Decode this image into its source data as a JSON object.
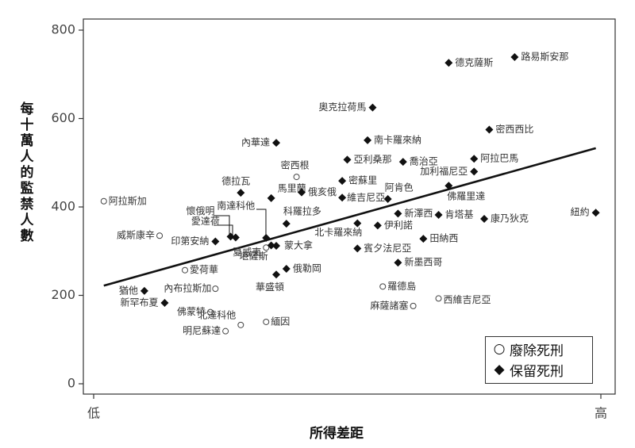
{
  "chart_data": {
    "type": "scatter",
    "title": "",
    "xlabel": "所得差距",
    "ylabel": "每十萬人的監禁人數",
    "x_ticks": [
      "低",
      "高"
    ],
    "xlim": [
      0,
      1
    ],
    "ylim": [
      0,
      800
    ],
    "y_ticks": [
      0,
      200,
      400,
      600,
      800
    ],
    "grid": false,
    "legend_position": "bottom-right",
    "legend": [
      {
        "label": "廢除死刑",
        "marker": "open-circle"
      },
      {
        "label": "保留死刑",
        "marker": "filled-diamond"
      }
    ],
    "trend_line": {
      "from": [
        0.02,
        222
      ],
      "to": [
        0.99,
        533
      ]
    },
    "series": [
      {
        "name": "廢除死刑",
        "marker": "open-circle",
        "points": [
          {
            "label": "阿拉斯加",
            "x": 0.02,
            "y": 413
          },
          {
            "label": "威斯康辛",
            "x": 0.13,
            "y": 335
          },
          {
            "label": "愛荷華",
            "x": 0.18,
            "y": 257
          },
          {
            "label": "內布拉斯加",
            "x": 0.24,
            "y": 215
          },
          {
            "label": "佛蒙特",
            "x": 0.23,
            "y": 162
          },
          {
            "label": "北達科他",
            "x": 0.29,
            "y": 133
          },
          {
            "label": "明尼蘇達",
            "x": 0.26,
            "y": 119
          },
          {
            "label": "緬因",
            "x": 0.34,
            "y": 140
          },
          {
            "label": "夏威夷",
            "x": 0.34,
            "y": 308
          },
          {
            "label": "密西根",
            "x": 0.4,
            "y": 468
          },
          {
            "label": "羅德島",
            "x": 0.57,
            "y": 220
          },
          {
            "label": "麻薩諸塞",
            "x": 0.63,
            "y": 176
          },
          {
            "label": "西維吉尼亞",
            "x": 0.68,
            "y": 193
          }
        ]
      },
      {
        "name": "保留死刑",
        "marker": "filled-diamond",
        "points": [
          {
            "label": "德克薩斯",
            "x": 0.7,
            "y": 726
          },
          {
            "label": "路易斯安那",
            "x": 0.83,
            "y": 739
          },
          {
            "label": "奧克拉荷馬",
            "x": 0.55,
            "y": 625
          },
          {
            "label": "密西西比",
            "x": 0.78,
            "y": 575
          },
          {
            "label": "內華達",
            "x": 0.36,
            "y": 545
          },
          {
            "label": "南卡羅來納",
            "x": 0.54,
            "y": 551
          },
          {
            "label": "亞利桑那",
            "x": 0.5,
            "y": 507
          },
          {
            "label": "喬治亞",
            "x": 0.61,
            "y": 502
          },
          {
            "label": "阿拉巴馬",
            "x": 0.75,
            "y": 509
          },
          {
            "label": "加利福尼亞",
            "x": 0.75,
            "y": 480
          },
          {
            "label": "密蘇里",
            "x": 0.49,
            "y": 459
          },
          {
            "label": "佛羅里達",
            "x": 0.7,
            "y": 448
          },
          {
            "label": "德拉瓦",
            "x": 0.29,
            "y": 432
          },
          {
            "label": "馬里蘭",
            "x": 0.35,
            "y": 420
          },
          {
            "label": "俄亥俄",
            "x": 0.41,
            "y": 433
          },
          {
            "label": "維吉尼亞",
            "x": 0.49,
            "y": 421
          },
          {
            "label": "阿肯色",
            "x": 0.58,
            "y": 418
          },
          {
            "label": "南達科他",
            "x": 0.34,
            "y": 330
          },
          {
            "label": "科羅拉多",
            "x": 0.38,
            "y": 362
          },
          {
            "label": "北卡羅來納",
            "x": 0.52,
            "y": 363
          },
          {
            "label": "伊利諾",
            "x": 0.56,
            "y": 358
          },
          {
            "label": "新澤西",
            "x": 0.6,
            "y": 385
          },
          {
            "label": "肯塔基",
            "x": 0.68,
            "y": 382
          },
          {
            "label": "康乃狄克",
            "x": 0.77,
            "y": 373
          },
          {
            "label": "紐約",
            "x": 0.99,
            "y": 387
          },
          {
            "label": "懷俄明",
            "x": 0.27,
            "y": 333
          },
          {
            "label": "愛達荷",
            "x": 0.28,
            "y": 331
          },
          {
            "label": "印第安納",
            "x": 0.24,
            "y": 322
          },
          {
            "label": "蒙大拿",
            "x": 0.36,
            "y": 312
          },
          {
            "label": "堪薩斯",
            "x": 0.35,
            "y": 313
          },
          {
            "label": "賓夕法尼亞",
            "x": 0.52,
            "y": 306
          },
          {
            "label": "田納西",
            "x": 0.65,
            "y": 328
          },
          {
            "label": "新墨西哥",
            "x": 0.6,
            "y": 274
          },
          {
            "label": "俄勒岡",
            "x": 0.38,
            "y": 260
          },
          {
            "label": "華盛頓",
            "x": 0.36,
            "y": 247
          },
          {
            "label": "猶他",
            "x": 0.1,
            "y": 210
          },
          {
            "label": "新罕布夏",
            "x": 0.14,
            "y": 183
          }
        ]
      }
    ]
  }
}
